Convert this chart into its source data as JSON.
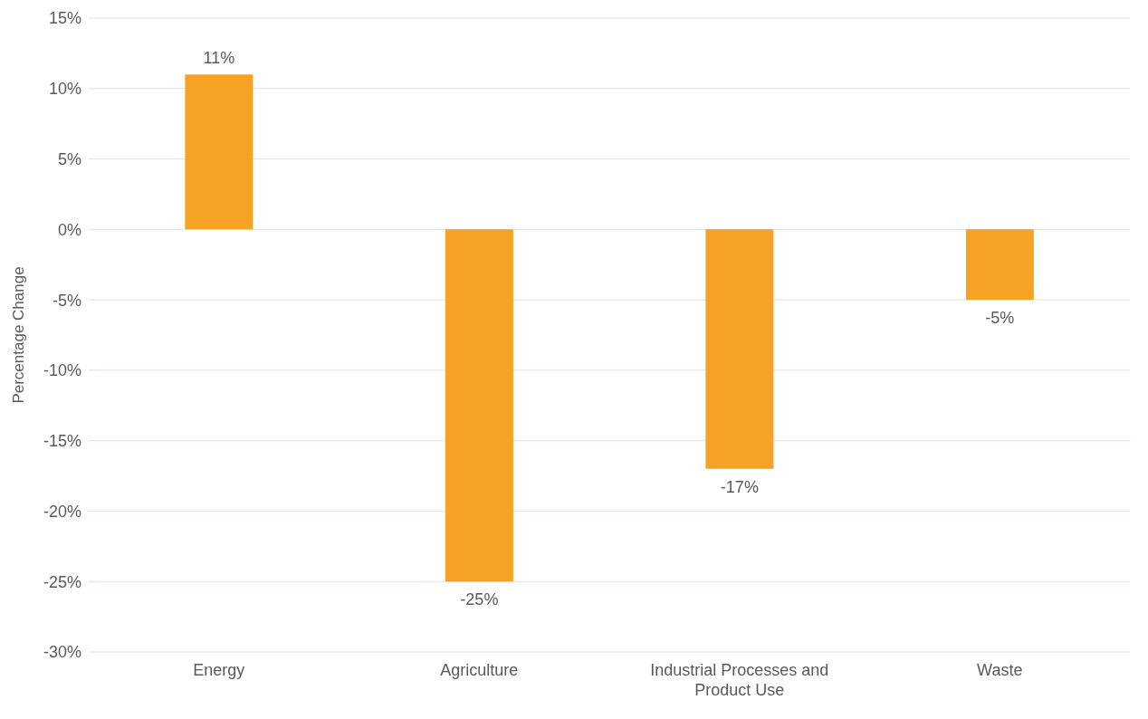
{
  "chart_data": {
    "type": "bar",
    "ylabel": "Percentage Change",
    "categories": [
      "Energy",
      "Agriculture",
      "Industrial Processes and Product Use",
      "Waste"
    ],
    "values": [
      11,
      -25,
      -17,
      -5
    ],
    "value_labels": [
      "11%",
      "-25%",
      "-17%",
      "-5%"
    ],
    "color": "#f5a225",
    "ylim": [
      -30,
      15
    ],
    "yticks": [
      {
        "value": -30,
        "label": "-30%"
      },
      {
        "value": -25,
        "label": "-25%"
      },
      {
        "value": -20,
        "label": "-20%"
      },
      {
        "value": -15,
        "label": "-15%"
      },
      {
        "value": -10,
        "label": "-10%"
      },
      {
        "value": -5,
        "label": "-5%"
      },
      {
        "value": 0,
        "label": "0%"
      },
      {
        "value": 5,
        "label": "5%"
      },
      {
        "value": 10,
        "label": "10%"
      },
      {
        "value": 15,
        "label": "15%"
      }
    ],
    "grid": "y",
    "legend": false
  }
}
